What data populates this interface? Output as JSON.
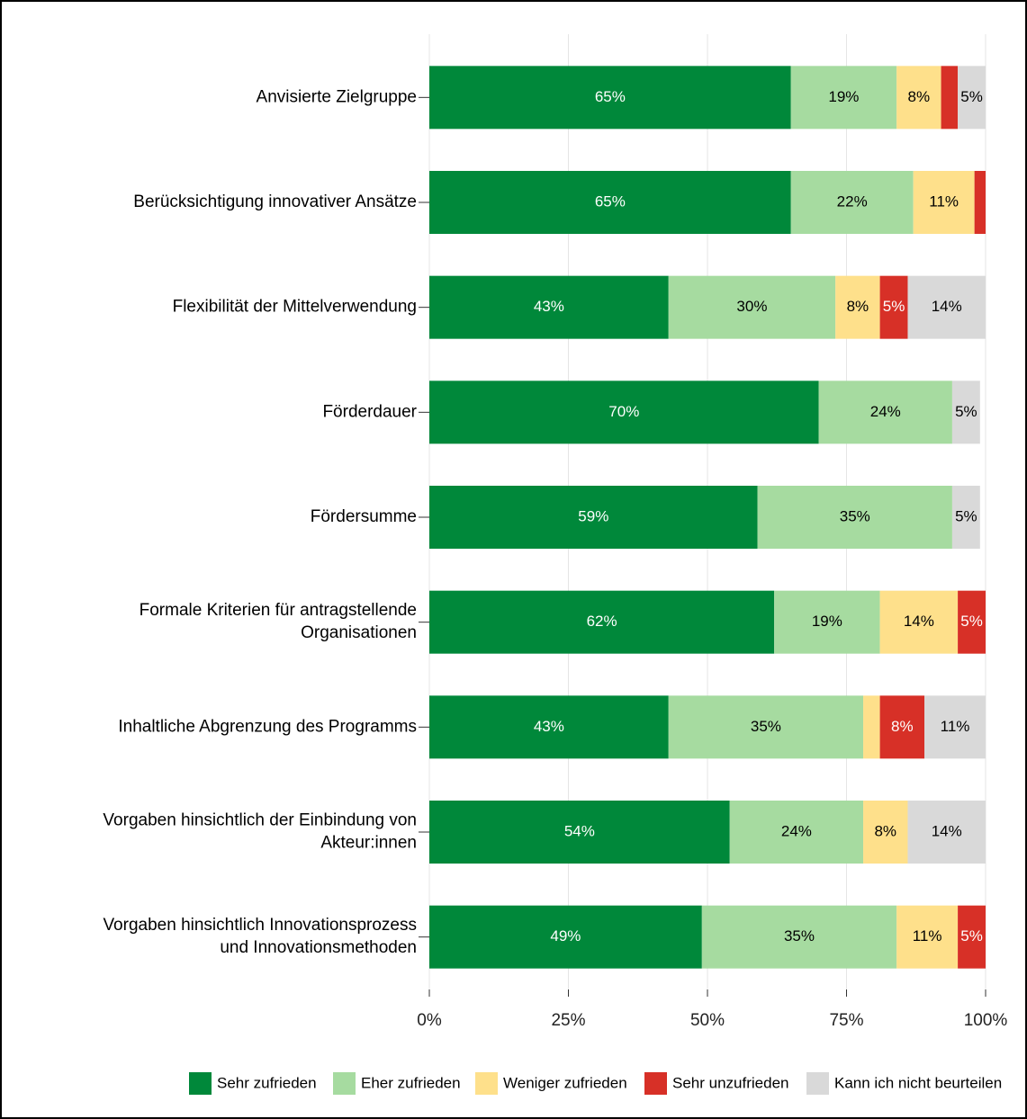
{
  "chart_data": {
    "type": "stacked-barh",
    "categories": [
      "Anvisierte Zielgruppe",
      "Berücksichtigung innovativer Ansätze",
      "Flexibilität der Mittelverwendung",
      "Förderdauer",
      "Fördersumme",
      "Formale Kriterien für antragstellende\nOrganisationen",
      "Inhaltliche Abgrenzung des Programms",
      "Vorgaben hinsichtlich der Einbindung von\nAkteur:innen",
      "Vorgaben hinsichtlich Innovationsprozess\nund Innovationsmethoden"
    ],
    "series": [
      {
        "name": "Sehr zufrieden",
        "color": "#00883a",
        "label_color": "#ffffff",
        "values": [
          65,
          65,
          43,
          70,
          59,
          62,
          43,
          54,
          49
        ],
        "value_labels": [
          "65%",
          "65%",
          "43%",
          "70%",
          "59%",
          "62%",
          "43%",
          "54%",
          "49%"
        ]
      },
      {
        "name": "Eher zufrieden",
        "color": "#a6dba0",
        "label_color": "#000000",
        "values": [
          19,
          22,
          30,
          24,
          35,
          19,
          35,
          24,
          35
        ],
        "value_labels": [
          "19%",
          "22%",
          "30%",
          "24%",
          "35%",
          "19%",
          "35%",
          "24%",
          "35%"
        ]
      },
      {
        "name": "Weniger zufrieden",
        "color": "#fee08b",
        "label_color": "#000000",
        "values": [
          8,
          11,
          8,
          0,
          0,
          14,
          3,
          8,
          11
        ],
        "value_labels": [
          "8%",
          "11%",
          "8%",
          null,
          null,
          "14%",
          null,
          "8%",
          "11%"
        ]
      },
      {
        "name": "Sehr unzufrieden",
        "color": "#d73027",
        "label_color": "#ffffff",
        "values": [
          3,
          2,
          5,
          0,
          0,
          5,
          8,
          0,
          5
        ],
        "value_labels": [
          null,
          null,
          "5%",
          null,
          null,
          "5%",
          "8%",
          null,
          "5%"
        ]
      },
      {
        "name": "Kann ich nicht beurteilen",
        "color": "#d9d9d9",
        "label_color": "#000000",
        "values": [
          5,
          0,
          14,
          5,
          5,
          0,
          11,
          14,
          0
        ],
        "value_labels": [
          "5%",
          null,
          "14%",
          "5%",
          "5%",
          null,
          "11%",
          "14%",
          null
        ]
      }
    ],
    "xlim": [
      0,
      100
    ],
    "xticks": [
      {
        "value": 0,
        "label": "0%"
      },
      {
        "value": 25,
        "label": "25%"
      },
      {
        "value": 50,
        "label": "50%"
      },
      {
        "value": 75,
        "label": "75%"
      },
      {
        "value": 100,
        "label": "100%"
      }
    ],
    "grid": true,
    "legend": "bottom"
  }
}
